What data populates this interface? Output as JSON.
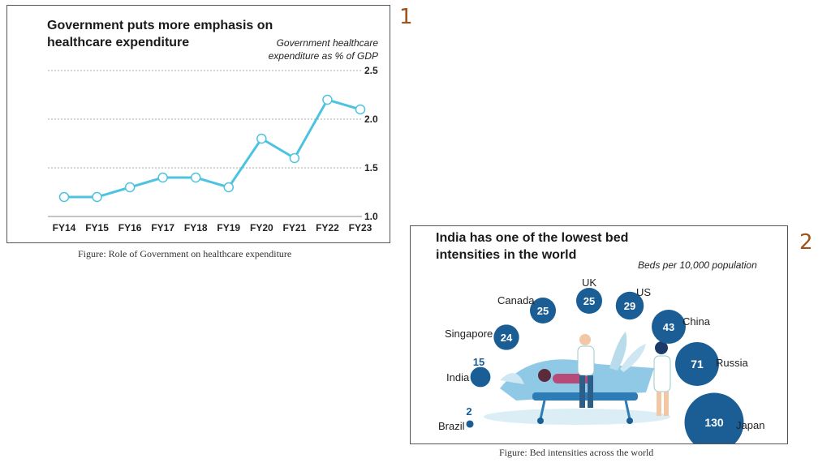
{
  "slide_numbers": [
    "1",
    "2"
  ],
  "colors": {
    "line": "#4ec3e0",
    "marker_fill": "#ffffff",
    "bubble": "#1b5e96",
    "slide_number": "#a0521d",
    "grid": "#aaaaaa"
  },
  "figure1": {
    "caption": "Figure: Role of Government on healthcare expenditure"
  },
  "figure2": {
    "caption": "Figure: Bed intensities across the world"
  },
  "chart_data": [
    {
      "type": "line",
      "title": "Government puts more emphasis on healthcare expenditure",
      "unit_note": "Government healthcare expenditure as % of GDP",
      "categories": [
        "FY14",
        "FY15",
        "FY16",
        "FY17",
        "FY18",
        "FY19",
        "FY20",
        "FY21",
        "FY22",
        "FY23"
      ],
      "values": [
        1.2,
        1.2,
        1.3,
        1.4,
        1.4,
        1.3,
        1.8,
        1.6,
        2.2,
        2.1
      ],
      "ylim": [
        1.0,
        2.5
      ],
      "yticks": [
        "1.0",
        "1.5",
        "2.0",
        "2.5"
      ],
      "ytick_values": [
        1.0,
        1.5,
        2.0,
        2.5
      ],
      "grid": true,
      "xlabel": "",
      "ylabel": ""
    },
    {
      "type": "scatter",
      "title": "India has one of the lowest bed intensities in the world",
      "unit_note": "Beds per 10,000 population",
      "countries": [
        {
          "name": "UK",
          "value": 25
        },
        {
          "name": "US",
          "value": 29
        },
        {
          "name": "Canada",
          "value": 25
        },
        {
          "name": "China",
          "value": 43
        },
        {
          "name": "Singapore",
          "value": 24
        },
        {
          "name": "Russia",
          "value": 71
        },
        {
          "name": "India",
          "value": 15
        },
        {
          "name": "Brazil",
          "value": 2
        },
        {
          "name": "Japan",
          "value": 130
        }
      ]
    }
  ]
}
